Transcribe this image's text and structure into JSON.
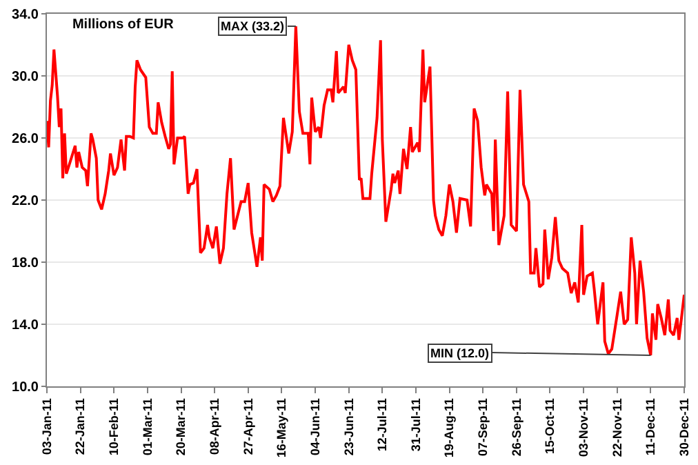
{
  "chart_data": {
    "type": "line",
    "title": "Millions of EUR",
    "x": [
      "2011-01-03",
      "2011-01-04",
      "2011-01-05",
      "2011-01-06",
      "2011-01-07",
      "2011-01-09",
      "2011-01-10",
      "2011-01-11",
      "2011-01-12",
      "2011-01-13",
      "2011-01-14",
      "2011-01-16",
      "2011-01-19",
      "2011-01-20",
      "2011-01-21",
      "2011-01-23",
      "2011-01-25",
      "2011-01-26",
      "2011-01-28",
      "2011-01-29",
      "2011-01-31",
      "2011-02-01",
      "2011-02-03",
      "2011-02-05",
      "2011-02-07",
      "2011-02-08",
      "2011-02-10",
      "2011-02-12",
      "2011-02-14",
      "2011-02-16",
      "2011-02-17",
      "2011-02-19",
      "2011-02-21",
      "2011-02-22",
      "2011-02-23",
      "2011-02-25",
      "2011-02-28",
      "2011-03-02",
      "2011-03-04",
      "2011-03-06",
      "2011-03-07",
      "2011-03-09",
      "2011-03-11",
      "2011-03-13",
      "2011-03-14",
      "2011-03-15",
      "2011-03-16",
      "2011-03-18",
      "2011-03-21",
      "2011-03-22",
      "2011-03-24",
      "2011-03-25",
      "2011-03-27",
      "2011-03-29",
      "2011-03-31",
      "2011-04-02",
      "2011-04-04",
      "2011-04-05",
      "2011-04-07",
      "2011-04-09",
      "2011-04-11",
      "2011-04-13",
      "2011-04-15",
      "2011-04-17",
      "2011-04-19",
      "2011-04-21",
      "2011-04-23",
      "2011-04-25",
      "2011-04-27",
      "2011-04-29",
      "2011-05-02",
      "2011-05-04",
      "2011-05-05",
      "2011-05-06",
      "2011-05-09",
      "2011-05-11",
      "2011-05-13",
      "2011-05-15",
      "2011-05-17",
      "2011-05-20",
      "2011-05-22",
      "2011-05-24",
      "2011-05-26",
      "2011-05-28",
      "2011-05-31",
      "2011-06-01",
      "2011-06-02",
      "2011-06-04",
      "2011-06-06",
      "2011-06-07",
      "2011-06-09",
      "2011-06-11",
      "2011-06-13",
      "2011-06-14",
      "2011-06-16",
      "2011-06-17",
      "2011-06-20",
      "2011-06-21",
      "2011-06-23",
      "2011-06-25",
      "2011-06-27",
      "2011-06-29",
      "2011-06-30",
      "2011-07-01",
      "2011-07-05",
      "2011-07-06",
      "2011-07-09",
      "2011-07-11",
      "2011-07-12",
      "2011-07-14",
      "2011-07-17",
      "2011-07-18",
      "2011-07-19",
      "2011-07-21",
      "2011-07-22",
      "2011-07-24",
      "2011-07-26",
      "2011-07-28",
      "2011-07-29",
      "2011-08-01",
      "2011-08-02",
      "2011-08-04",
      "2011-08-05",
      "2011-08-08",
      "2011-08-10",
      "2011-08-11",
      "2011-08-13",
      "2011-08-15",
      "2011-08-17",
      "2011-08-19",
      "2011-08-21",
      "2011-08-23",
      "2011-08-25",
      "2011-08-29",
      "2011-08-31",
      "2011-09-02",
      "2011-09-04",
      "2011-09-06",
      "2011-09-08",
      "2011-09-09",
      "2011-09-12",
      "2011-09-13",
      "2011-09-14",
      "2011-09-16",
      "2011-09-19",
      "2011-09-21",
      "2011-09-23",
      "2011-09-26",
      "2011-09-28",
      "2011-09-30",
      "2011-10-03",
      "2011-10-04",
      "2011-10-06",
      "2011-10-07",
      "2011-10-09",
      "2011-10-11",
      "2011-10-12",
      "2011-10-14",
      "2011-10-16",
      "2011-10-18",
      "2011-10-20",
      "2011-10-22",
      "2011-10-25",
      "2011-10-27",
      "2011-10-29",
      "2011-10-31",
      "2011-11-02",
      "2011-11-03",
      "2011-11-05",
      "2011-11-08",
      "2011-11-09",
      "2011-11-11",
      "2011-11-14",
      "2011-11-15",
      "2011-11-17",
      "2011-11-19",
      "2011-11-22",
      "2011-11-24",
      "2011-11-26",
      "2011-11-28",
      "2011-11-30",
      "2011-12-02",
      "2011-12-03",
      "2011-12-05",
      "2011-12-07",
      "2011-12-09",
      "2011-12-11",
      "2011-12-12",
      "2011-12-14",
      "2011-12-15",
      "2011-12-17",
      "2011-12-19",
      "2011-12-21",
      "2011-12-22",
      "2011-12-24",
      "2011-12-26",
      "2011-12-27",
      "2011-12-30"
    ],
    "series": [
      {
        "color": "#ff0000",
        "values": [
          27.1,
          25.4,
          28.4,
          29.4,
          31.7,
          28.7,
          26.7,
          27.9,
          23.4,
          26.3,
          23.7,
          24.4,
          25.5,
          24.1,
          25.1,
          24.1,
          23.9,
          22.9,
          26.3,
          25.9,
          24.7,
          22.0,
          21.4,
          22.4,
          23.9,
          25.0,
          23.6,
          24.1,
          25.9,
          23.9,
          26.1,
          26.1,
          26.0,
          29.3,
          31.0,
          30.4,
          29.9,
          26.7,
          26.3,
          26.3,
          28.3,
          27.0,
          26.1,
          25.3,
          25.6,
          30.3,
          24.3,
          26.0,
          26.0,
          26.1,
          22.4,
          23.0,
          23.1,
          24.0,
          18.6,
          18.9,
          20.4,
          19.6,
          18.9,
          20.3,
          17.9,
          18.9,
          22.4,
          24.7,
          20.1,
          21.0,
          21.9,
          21.9,
          23.1,
          19.9,
          17.7,
          19.6,
          18.1,
          23.0,
          22.7,
          21.9,
          22.3,
          22.9,
          27.3,
          25.0,
          26.4,
          33.2,
          27.7,
          26.3,
          26.3,
          24.3,
          28.6,
          26.4,
          26.7,
          26.0,
          28.1,
          29.1,
          29.1,
          28.3,
          31.6,
          28.9,
          29.3,
          28.9,
          32.0,
          31.0,
          30.4,
          23.3,
          23.4,
          22.1,
          22.1,
          23.7,
          27.3,
          32.3,
          25.9,
          20.6,
          22.7,
          23.7,
          23.1,
          23.9,
          22.4,
          25.3,
          24.0,
          26.7,
          25.1,
          25.7,
          25.1,
          31.7,
          28.3,
          30.6,
          22.0,
          21.0,
          20.1,
          19.7,
          21.0,
          23.0,
          21.9,
          19.9,
          22.1,
          22.0,
          20.3,
          27.9,
          27.1,
          24.1,
          22.3,
          23.0,
          22.4,
          20.0,
          25.9,
          19.1,
          21.0,
          29.0,
          20.4,
          20.0,
          29.1,
          23.0,
          21.9,
          17.3,
          17.3,
          18.9,
          16.4,
          16.6,
          20.1,
          16.9,
          18.3,
          20.9,
          18.1,
          17.6,
          17.3,
          16.0,
          16.7,
          15.4,
          20.4,
          15.9,
          17.1,
          17.3,
          16.3,
          14.0,
          16.7,
          12.9,
          12.1,
          12.4,
          14.6,
          16.1,
          14.0,
          14.3,
          19.6,
          17.3,
          14.0,
          18.1,
          16.1,
          13.1,
          12.0,
          14.7,
          13.0,
          15.3,
          14.4,
          13.3,
          15.6,
          13.6,
          13.3,
          14.4,
          13.0,
          15.9
        ]
      }
    ],
    "xlim": [
      "2011-01-03",
      "2011-12-30"
    ],
    "xticks": [
      {
        "value": "2011-01-03",
        "label": "03-Jan-11"
      },
      {
        "value": "2011-01-22",
        "label": "22-Jan-11"
      },
      {
        "value": "2011-02-10",
        "label": "10-Feb-11"
      },
      {
        "value": "2011-03-01",
        "label": "01-Mar-11"
      },
      {
        "value": "2011-03-20",
        "label": "20-Mar-11"
      },
      {
        "value": "2011-04-08",
        "label": "08-Apr-11"
      },
      {
        "value": "2011-04-27",
        "label": "27-Apr-11"
      },
      {
        "value": "2011-05-16",
        "label": "16-May-11"
      },
      {
        "value": "2011-06-04",
        "label": "04-Jun-11"
      },
      {
        "value": "2011-06-23",
        "label": "23-Jun-11"
      },
      {
        "value": "2011-07-12",
        "label": "12-Jul-11"
      },
      {
        "value": "2011-07-31",
        "label": "31-Jul-11"
      },
      {
        "value": "2011-08-19",
        "label": "19-Aug-11"
      },
      {
        "value": "2011-09-07",
        "label": "07-Sep-11"
      },
      {
        "value": "2011-09-26",
        "label": "26-Sep-11"
      },
      {
        "value": "2011-10-15",
        "label": "15-Oct-11"
      },
      {
        "value": "2011-11-03",
        "label": "03-Nov-11"
      },
      {
        "value": "2011-11-22",
        "label": "22-Nov-11"
      },
      {
        "value": "2011-12-11",
        "label": "11-Dec-11"
      },
      {
        "value": "2011-12-30",
        "label": "30-Dec-11"
      }
    ],
    "ylim": [
      10,
      34
    ],
    "yticks": [
      {
        "value": 10,
        "label": "10.0"
      },
      {
        "value": 14,
        "label": "14.0"
      },
      {
        "value": 18,
        "label": "18.0"
      },
      {
        "value": 22,
        "label": "22.0"
      },
      {
        "value": 26,
        "label": "26.0"
      },
      {
        "value": 30,
        "label": "30.0"
      },
      {
        "value": 34,
        "label": "34.0"
      }
    ],
    "grid": "y",
    "marker": "none",
    "line_style": "solid",
    "annotations": [
      {
        "text": "MAX (33.2)",
        "x": "2011-05-24",
        "y": 33.2
      },
      {
        "text": "MIN (12.0)",
        "x": "2011-12-11",
        "y": 12.0
      }
    ]
  }
}
